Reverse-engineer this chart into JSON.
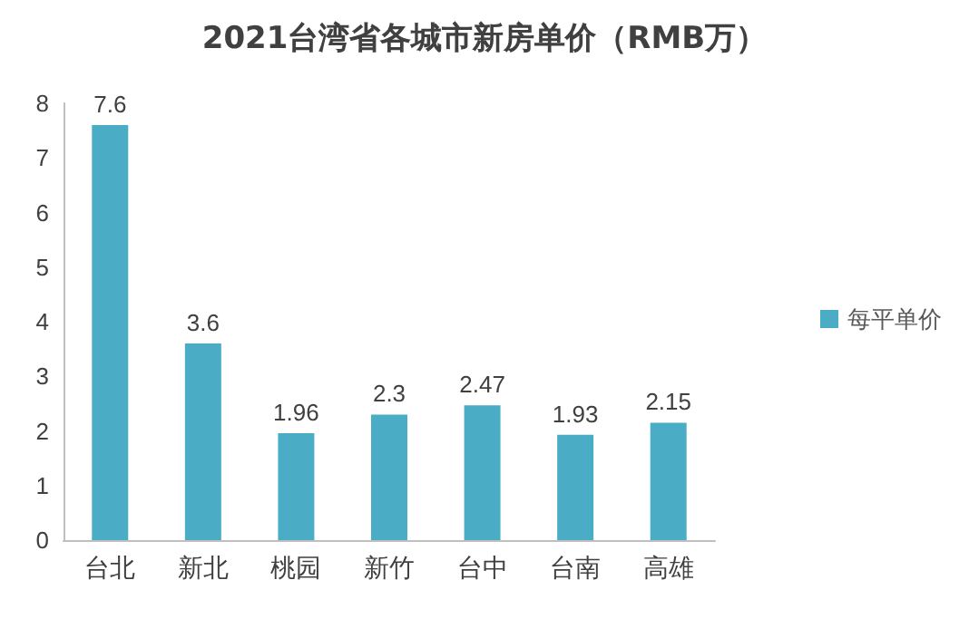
{
  "chart_data": {
    "type": "bar",
    "title": "2021台湾省各城市新房单价（RMB万）",
    "categories": [
      "台北",
      "新北",
      "桃园",
      "新竹",
      "台中",
      "台南",
      "高雄"
    ],
    "series": [
      {
        "name": "每平单价",
        "color": "#4bacc6",
        "values": [
          7.6,
          3.6,
          1.96,
          2.3,
          2.47,
          1.93,
          2.15
        ]
      }
    ],
    "ylim": [
      0,
      8
    ],
    "yticks": [
      0,
      1,
      2,
      3,
      4,
      5,
      6,
      7,
      8
    ],
    "data_labels": true,
    "legend": "right",
    "grid": false
  }
}
